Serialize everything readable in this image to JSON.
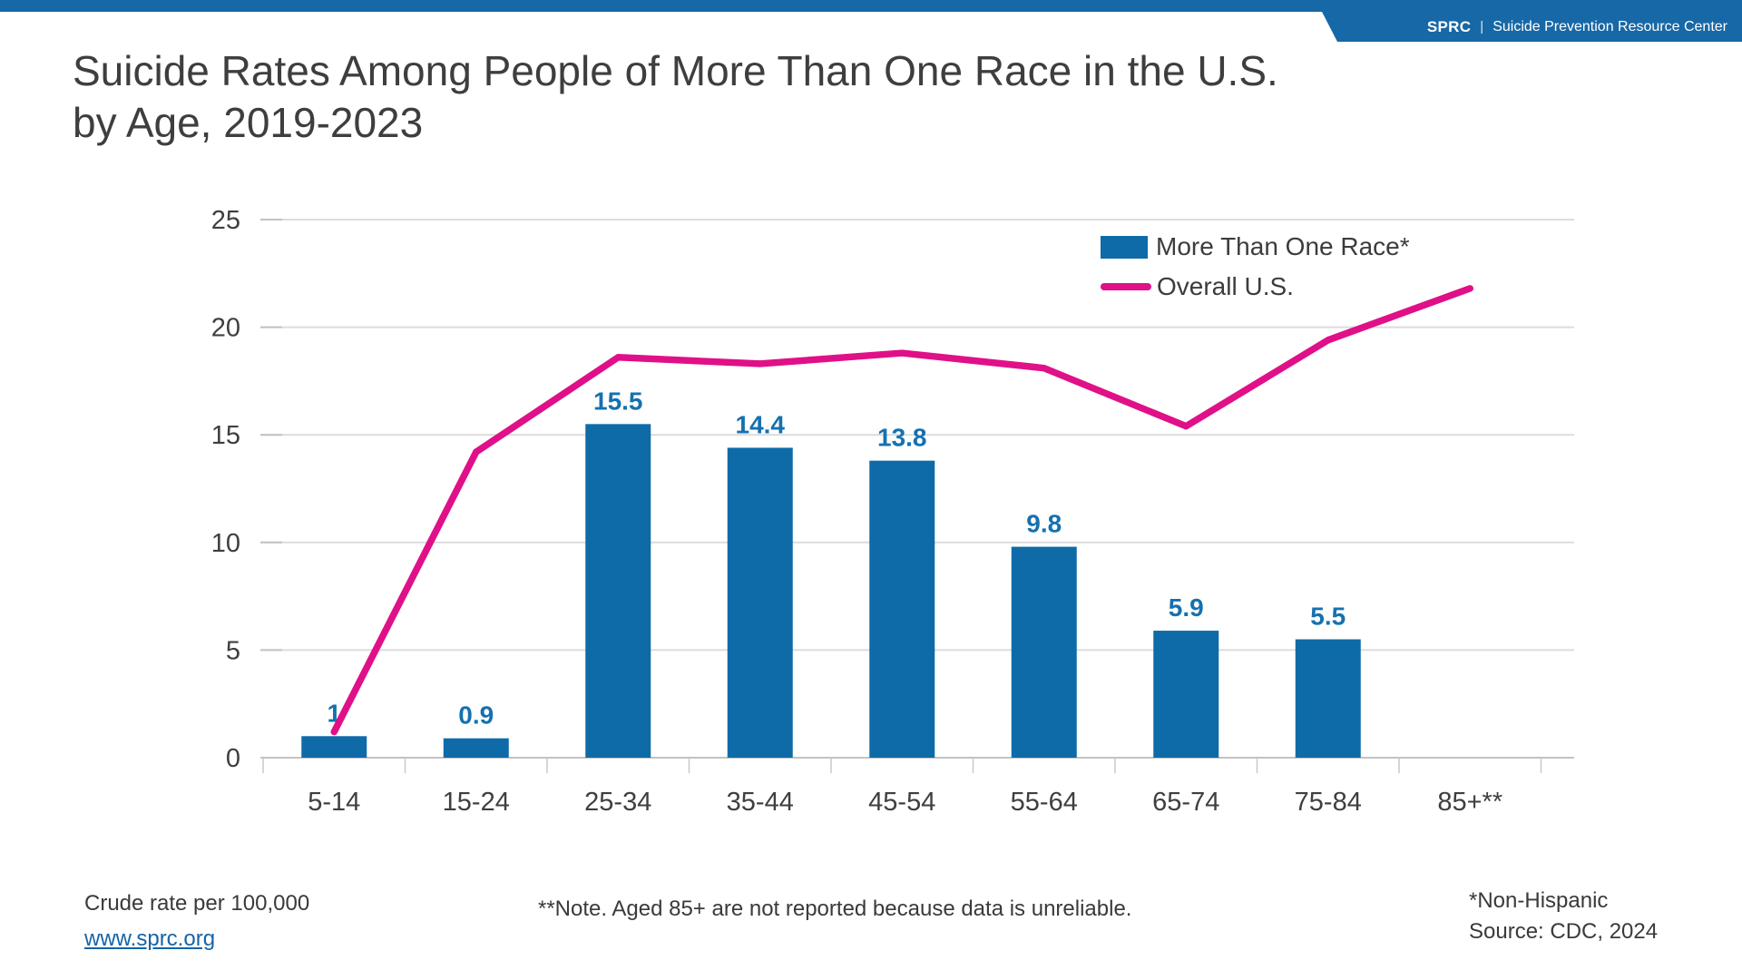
{
  "banner": {
    "brand": "SPRC",
    "separator": "|",
    "org": "Suicide Prevention Resource Center",
    "color": "#1768a6"
  },
  "title": {
    "line1": "Suicide Rates Among People of More Than One Race in the U.S.",
    "line2": "by Age, 2019-2023"
  },
  "chart_data": {
    "type": "bar",
    "title": "Suicide Rates Among People of More Than One Race in the U.S. by Age, 2019-2023",
    "categories": [
      "5-14",
      "15-24",
      "25-34",
      "35-44",
      "45-54",
      "55-64",
      "65-74",
      "75-84",
      "85+**"
    ],
    "series": [
      {
        "name": "More Than One Race*",
        "type": "bar",
        "color": "#0e6ba8",
        "label_color": "#1571b0",
        "values": [
          1,
          0.9,
          15.5,
          14.4,
          13.8,
          9.8,
          5.9,
          5.5,
          null
        ]
      },
      {
        "name": "Overall U.S.",
        "type": "line",
        "color": "#e01088",
        "values": [
          1.2,
          14.2,
          18.6,
          18.3,
          18.8,
          18.1,
          15.4,
          19.4,
          21.8
        ]
      }
    ],
    "xlabel": "",
    "ylabel": "",
    "ylim": [
      0,
      25
    ],
    "yticks": [
      0,
      5,
      10,
      15,
      20,
      25
    ],
    "grid": true,
    "legend_position": "top-right"
  },
  "legend": {
    "items": [
      {
        "label": "More Than One Race*",
        "swatch": "bar",
        "color": "#0e6ba8"
      },
      {
        "label": "Overall U.S.",
        "swatch": "line",
        "color": "#e01088"
      }
    ]
  },
  "footer": {
    "left_note": "Crude rate per 100,000",
    "link": "www.sprc.org",
    "link_color": "#1464a8",
    "center_note": "**Note. Aged 85+ are not reported because data is unreliable.",
    "right_note1": "*Non-Hispanic",
    "right_note2": "Source: CDC, 2024"
  }
}
